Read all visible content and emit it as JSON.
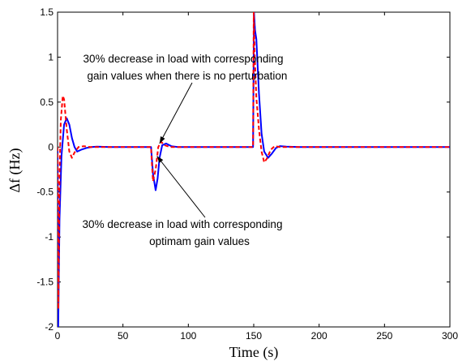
{
  "chart_data": {
    "type": "line",
    "title": "",
    "xlabel": "Time (s)",
    "ylabel": "Δf (Hz)",
    "xlim": [
      0,
      300
    ],
    "ylim": [
      -2,
      1.5
    ],
    "xticks": [
      0,
      50,
      100,
      150,
      200,
      250,
      300
    ],
    "yticks": [
      -2,
      -1.5,
      -1,
      -0.5,
      0,
      0.5,
      1,
      1.5
    ],
    "xtick_labels": [
      "0",
      "50",
      "100",
      "150",
      "200",
      "250",
      "300"
    ],
    "ytick_labels": [
      "-2",
      "-1.5",
      "-1",
      "-0.5",
      "0",
      "0.5",
      "1",
      "1.5"
    ],
    "grid": false,
    "series": [
      {
        "color": "#0000ff",
        "style": "solid",
        "points": [
          [
            0,
            0
          ],
          [
            0.5,
            -2
          ],
          [
            1.5,
            -0.8
          ],
          [
            3,
            -0.1
          ],
          [
            5,
            0.25
          ],
          [
            7,
            0.32
          ],
          [
            9,
            0.25
          ],
          [
            11,
            0.1
          ],
          [
            13,
            0.0
          ],
          [
            15,
            -0.05
          ],
          [
            18,
            -0.03
          ],
          [
            22,
            -0.01
          ],
          [
            26,
            0
          ],
          [
            30,
            0.005
          ],
          [
            40,
            0
          ],
          [
            50,
            0
          ],
          [
            60,
            0
          ],
          [
            70,
            0
          ],
          [
            71.5,
            0
          ],
          [
            72,
            -0.1
          ],
          [
            73,
            -0.3
          ],
          [
            75,
            -0.48
          ],
          [
            76.5,
            -0.35
          ],
          [
            78,
            -0.12
          ],
          [
            80,
            0.02
          ],
          [
            83,
            0.04
          ],
          [
            87,
            0.01
          ],
          [
            92,
            0
          ],
          [
            100,
            0
          ],
          [
            120,
            0
          ],
          [
            140,
            0
          ],
          [
            149.5,
            0
          ],
          [
            150.2,
            1.5
          ],
          [
            151,
            1.3
          ],
          [
            152,
            1.2
          ],
          [
            154,
            0.6
          ],
          [
            156,
            0.15
          ],
          [
            158,
            -0.05
          ],
          [
            161,
            -0.12
          ],
          [
            164,
            -0.07
          ],
          [
            167,
            -0.01
          ],
          [
            170,
            0.01
          ],
          [
            175,
            0.005
          ],
          [
            185,
            0
          ],
          [
            200,
            0
          ],
          [
            220,
            0
          ],
          [
            250,
            0
          ],
          [
            280,
            0
          ],
          [
            300,
            0
          ]
        ]
      },
      {
        "color": "#ff0000",
        "style": "dashed",
        "points": [
          [
            0,
            0
          ],
          [
            0.6,
            -1.8
          ],
          [
            1.5,
            -0.3
          ],
          [
            2.5,
            0.3
          ],
          [
            4,
            0.57
          ],
          [
            5,
            0.53
          ],
          [
            7,
            0.2
          ],
          [
            9,
            -0.05
          ],
          [
            11,
            -0.12
          ],
          [
            13,
            -0.06
          ],
          [
            16,
            0
          ],
          [
            20,
            0.01
          ],
          [
            25,
            0
          ],
          [
            40,
            0
          ],
          [
            60,
            0
          ],
          [
            70,
            0
          ],
          [
            71.5,
            0
          ],
          [
            72,
            -0.15
          ],
          [
            73,
            -0.38
          ],
          [
            75,
            -0.25
          ],
          [
            77,
            0
          ],
          [
            79,
            0.06
          ],
          [
            82,
            0.02
          ],
          [
            86,
            0
          ],
          [
            100,
            0
          ],
          [
            140,
            0
          ],
          [
            149.5,
            0
          ],
          [
            150,
            1.5
          ],
          [
            150.8,
            1.0
          ],
          [
            152,
            0.55
          ],
          [
            154,
            0.2
          ],
          [
            156,
            -0.05
          ],
          [
            158,
            -0.17
          ],
          [
            160,
            -0.13
          ],
          [
            163,
            -0.03
          ],
          [
            166,
            0.01
          ],
          [
            170,
            0
          ],
          [
            200,
            0
          ],
          [
            250,
            0
          ],
          [
            300,
            0
          ]
        ]
      }
    ],
    "annotations": [
      {
        "lines": [
          "30% decrease in load with corresponding",
          "gain values when there is no perturbation"
        ]
      },
      {
        "lines": [
          "30% decrease in load with corresponding",
          "optimam gain values"
        ]
      }
    ]
  }
}
